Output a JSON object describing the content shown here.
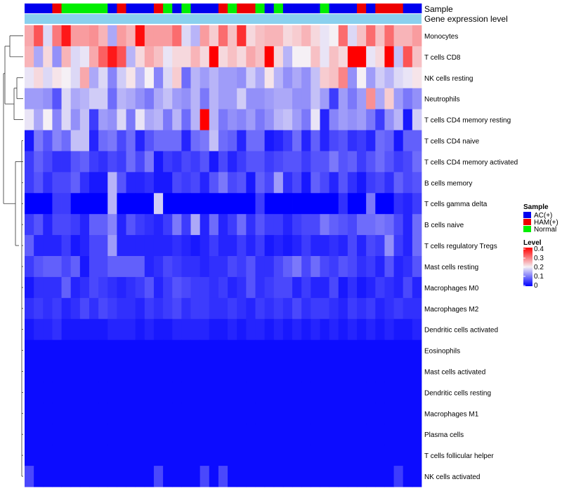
{
  "chart_data": {
    "type": "heatmap",
    "title": "",
    "annotation_tracks": {
      "sample_label": "Sample",
      "expression_label": "Gene expression level"
    },
    "sample_groups": [
      "AC(+)",
      "AC(+)",
      "AC(+)",
      "HAM(+)",
      "Normal",
      "Normal",
      "Normal",
      "Normal",
      "Normal",
      "AC(+)",
      "HAM(+)",
      "AC(+)",
      "AC(+)",
      "AC(+)",
      "HAM(+)",
      "Normal",
      "AC(+)",
      "Normal",
      "AC(+)",
      "AC(+)",
      "AC(+)",
      "HAM(+)",
      "Normal",
      "HAM(+)",
      "HAM(+)",
      "Normal",
      "AC(+)",
      "Normal",
      "AC(+)",
      "AC(+)",
      "AC(+)",
      "AC(+)",
      "Normal",
      "AC(+)",
      "AC(+)",
      "AC(+)",
      "HAM(+)",
      "AC(+)",
      "HAM(+)",
      "HAM(+)",
      "HAM(+)",
      "AC(+)",
      "AC(+)"
    ],
    "rows": [
      "Monocytes",
      "T cells CD8",
      "NK cells resting",
      "Neutrophils",
      "T cells CD4 memory resting",
      "T cells CD4 naive",
      "T cells CD4 memory activated",
      "B cells memory",
      "T cells gamma delta",
      "B cells naive",
      "T cells regulatory  Tregs",
      "Mast cells resting",
      "Macrophages M0",
      "Macrophages M2",
      "Dendritic cells activated",
      "Eosinophils",
      "Mast cells activated",
      "Dendritic cells resting",
      "Macrophages M1",
      "Plasma cells",
      "T cells follicular helper",
      "NK cells activated"
    ],
    "values": [
      [
        0.26,
        0.33,
        0.18,
        0.3,
        0.38,
        0.27,
        0.27,
        0.28,
        0.25,
        0.14,
        0.27,
        0.25,
        0.39,
        0.27,
        0.27,
        0.27,
        0.31,
        0.18,
        0.15,
        0.27,
        0.23,
        0.31,
        0.24,
        0.36,
        0.22,
        0.24,
        0.25,
        0.25,
        0.22,
        0.23,
        0.25,
        0.22,
        0.19,
        0.2,
        0.31,
        0.18,
        0.24,
        0.31,
        0.24,
        0.31,
        0.25,
        0.25,
        0.27
      ],
      [
        0.25,
        0.14,
        0.22,
        0.12,
        0.25,
        0.18,
        0.19,
        0.26,
        0.32,
        0.38,
        0.33,
        0.15,
        0.22,
        0.26,
        0.24,
        0.19,
        0.22,
        0.22,
        0.25,
        0.22,
        0.4,
        0.22,
        0.24,
        0.22,
        0.26,
        0.24,
        0.4,
        0.22,
        0.15,
        0.2,
        0.2,
        0.24,
        0.19,
        0.24,
        0.22,
        0.4,
        0.4,
        0.19,
        0.22,
        0.4,
        0.16,
        0.33,
        0.24
      ],
      [
        0.19,
        0.22,
        0.18,
        0.21,
        0.2,
        0.18,
        0.26,
        0.14,
        0.18,
        0.11,
        0.17,
        0.21,
        0.15,
        0.2,
        0.11,
        0.18,
        0.23,
        0.09,
        0.15,
        0.13,
        0.15,
        0.13,
        0.13,
        0.12,
        0.17,
        0.14,
        0.21,
        0.15,
        0.12,
        0.14,
        0.12,
        0.16,
        0.23,
        0.24,
        0.29,
        0.12,
        0.2,
        0.13,
        0.17,
        0.15,
        0.18,
        0.19,
        0.21
      ],
      [
        0.13,
        0.13,
        0.12,
        0.07,
        0.18,
        0.14,
        0.15,
        0.17,
        0.17,
        0.09,
        0.15,
        0.14,
        0.12,
        0.1,
        0.14,
        0.16,
        0.13,
        0.12,
        0.15,
        0.1,
        0.15,
        0.13,
        0.13,
        0.17,
        0.12,
        0.12,
        0.13,
        0.14,
        0.14,
        0.12,
        0.12,
        0.16,
        0.13,
        0.05,
        0.13,
        0.1,
        0.13,
        0.28,
        0.14,
        0.23,
        0.13,
        0.1,
        0.12
      ],
      [
        0.19,
        0.14,
        0.2,
        0.11,
        0.18,
        0.12,
        0.16,
        0.05,
        0.13,
        0.12,
        0.18,
        0.1,
        0.19,
        0.14,
        0.15,
        0.1,
        0.15,
        0.09,
        0.15,
        0.4,
        0.15,
        0.1,
        0.12,
        0.11,
        0.13,
        0.1,
        0.12,
        0.15,
        0.16,
        0.13,
        0.1,
        0.19,
        0.03,
        0.11,
        0.13,
        0.12,
        0.13,
        0.1,
        0.05,
        0.12,
        0.15,
        0.02,
        0.17
      ],
      [
        0.02,
        0.1,
        0.07,
        0.11,
        0.09,
        0.16,
        0.16,
        0.03,
        0.09,
        0.1,
        0.06,
        0.09,
        0.03,
        0.07,
        0.09,
        0.09,
        0.09,
        0.03,
        0.09,
        0.1,
        0.16,
        0.09,
        0.08,
        0.03,
        0.09,
        0.09,
        0.02,
        0.03,
        0.05,
        0.09,
        0.03,
        0.08,
        0.03,
        0.06,
        0.07,
        0.04,
        0.05,
        0.03,
        0.09,
        0.08,
        0.02,
        0.08,
        0.08
      ],
      [
        0.05,
        0.08,
        0.06,
        0.04,
        0.04,
        0.07,
        0.08,
        0.05,
        0.04,
        0.06,
        0.05,
        0.09,
        0.06,
        0.1,
        0.02,
        0.05,
        0.04,
        0.06,
        0.05,
        0.07,
        0.02,
        0.06,
        0.03,
        0.05,
        0.07,
        0.07,
        0.05,
        0.06,
        0.07,
        0.07,
        0.05,
        0.07,
        0.07,
        0.1,
        0.07,
        0.08,
        0.05,
        0.07,
        0.09,
        0.07,
        0.05,
        0.06,
        0.09
      ],
      [
        0.05,
        0.07,
        0.04,
        0.06,
        0.06,
        0.08,
        0.04,
        0.02,
        0.02,
        0.15,
        0.07,
        0.03,
        0.03,
        0.04,
        0.02,
        0.02,
        0.06,
        0.05,
        0.06,
        0.03,
        0.07,
        0.1,
        0.06,
        0.07,
        0.02,
        0.08,
        0.06,
        0.13,
        0.04,
        0.06,
        0.02,
        0.08,
        0.06,
        0.03,
        0.07,
        0.04,
        0.02,
        0.05,
        0.06,
        0.04,
        0.08,
        0.06,
        0.07
      ],
      [
        0.0,
        0.0,
        0.0,
        0.05,
        0.05,
        0.0,
        0.0,
        0.0,
        0.0,
        0.15,
        0.0,
        0.0,
        0.0,
        0.0,
        0.17,
        0.0,
        0.0,
        0.0,
        0.0,
        0.0,
        0.0,
        0.0,
        0.0,
        0.0,
        0.0,
        0.05,
        0.0,
        0.0,
        0.0,
        0.0,
        0.0,
        0.0,
        0.0,
        0.0,
        0.04,
        0.0,
        0.0,
        0.1,
        0.0,
        0.0,
        0.04,
        0.03,
        0.05
      ],
      [
        0.05,
        0.07,
        0.03,
        0.06,
        0.06,
        0.05,
        0.03,
        0.08,
        0.08,
        0.11,
        0.03,
        0.07,
        0.05,
        0.04,
        0.03,
        0.05,
        0.1,
        0.05,
        0.14,
        0.03,
        0.09,
        0.03,
        0.05,
        0.09,
        0.04,
        0.07,
        0.05,
        0.05,
        0.03,
        0.05,
        0.06,
        0.06,
        0.1,
        0.08,
        0.07,
        0.06,
        0.09,
        0.09,
        0.1,
        0.09,
        0.06,
        0.03,
        0.09
      ],
      [
        0.08,
        0.03,
        0.03,
        0.03,
        0.05,
        0.02,
        0.03,
        0.06,
        0.06,
        0.13,
        0.03,
        0.03,
        0.03,
        0.03,
        0.03,
        0.03,
        0.04,
        0.03,
        0.02,
        0.03,
        0.05,
        0.03,
        0.03,
        0.05,
        0.03,
        0.05,
        0.02,
        0.03,
        0.02,
        0.03,
        0.05,
        0.03,
        0.03,
        0.04,
        0.03,
        0.06,
        0.03,
        0.06,
        0.05,
        0.12,
        0.05,
        0.03,
        0.09
      ],
      [
        0.05,
        0.07,
        0.08,
        0.08,
        0.06,
        0.08,
        0.02,
        0.06,
        0.06,
        0.08,
        0.08,
        0.08,
        0.08,
        0.03,
        0.04,
        0.06,
        0.05,
        0.04,
        0.04,
        0.03,
        0.04,
        0.04,
        0.06,
        0.05,
        0.07,
        0.04,
        0.04,
        0.06,
        0.08,
        0.1,
        0.06,
        0.09,
        0.06,
        0.05,
        0.07,
        0.06,
        0.04,
        0.05,
        0.03,
        0.07,
        0.03,
        0.04,
        0.07
      ],
      [
        0.02,
        0.04,
        0.04,
        0.04,
        0.08,
        0.03,
        0.04,
        0.06,
        0.05,
        0.04,
        0.03,
        0.04,
        0.05,
        0.07,
        0.03,
        0.05,
        0.07,
        0.06,
        0.05,
        0.05,
        0.04,
        0.05,
        0.03,
        0.04,
        0.07,
        0.04,
        0.05,
        0.06,
        0.06,
        0.03,
        0.05,
        0.03,
        0.03,
        0.06,
        0.02,
        0.04,
        0.02,
        0.03,
        0.05,
        0.04,
        0.03,
        0.06,
        0.03
      ],
      [
        0.04,
        0.05,
        0.04,
        0.05,
        0.03,
        0.04,
        0.06,
        0.04,
        0.06,
        0.05,
        0.04,
        0.04,
        0.03,
        0.05,
        0.04,
        0.05,
        0.06,
        0.04,
        0.05,
        0.05,
        0.04,
        0.04,
        0.05,
        0.04,
        0.03,
        0.05,
        0.04,
        0.05,
        0.04,
        0.06,
        0.04,
        0.05,
        0.05,
        0.04,
        0.03,
        0.05,
        0.04,
        0.05,
        0.03,
        0.04,
        0.05,
        0.04,
        0.04
      ],
      [
        0.02,
        0.03,
        0.03,
        0.04,
        0.02,
        0.02,
        0.02,
        0.02,
        0.02,
        0.03,
        0.03,
        0.03,
        0.02,
        0.03,
        0.02,
        0.02,
        0.03,
        0.03,
        0.03,
        0.03,
        0.02,
        0.02,
        0.03,
        0.02,
        0.03,
        0.03,
        0.02,
        0.03,
        0.02,
        0.03,
        0.02,
        0.03,
        0.02,
        0.03,
        0.02,
        0.03,
        0.02,
        0.03,
        0.02,
        0.03,
        0.02,
        0.02,
        0.03
      ],
      [
        0.01,
        0.01,
        0.01,
        0.01,
        0.01,
        0.01,
        0.01,
        0.01,
        0.01,
        0.01,
        0.01,
        0.01,
        0.01,
        0.01,
        0.01,
        0.01,
        0.01,
        0.01,
        0.01,
        0.01,
        0.01,
        0.01,
        0.01,
        0.01,
        0.01,
        0.01,
        0.01,
        0.01,
        0.01,
        0.01,
        0.01,
        0.01,
        0.01,
        0.01,
        0.01,
        0.01,
        0.01,
        0.01,
        0.01,
        0.01,
        0.01,
        0.01,
        0.01
      ],
      [
        0.01,
        0.01,
        0.01,
        0.01,
        0.01,
        0.01,
        0.01,
        0.01,
        0.01,
        0.01,
        0.01,
        0.01,
        0.01,
        0.01,
        0.01,
        0.01,
        0.01,
        0.01,
        0.01,
        0.01,
        0.01,
        0.01,
        0.01,
        0.01,
        0.01,
        0.01,
        0.01,
        0.01,
        0.01,
        0.01,
        0.01,
        0.01,
        0.01,
        0.01,
        0.01,
        0.01,
        0.01,
        0.01,
        0.01,
        0.01,
        0.01,
        0.01,
        0.01
      ],
      [
        0.01,
        0.01,
        0.01,
        0.01,
        0.01,
        0.01,
        0.01,
        0.01,
        0.01,
        0.01,
        0.01,
        0.01,
        0.01,
        0.01,
        0.01,
        0.01,
        0.01,
        0.01,
        0.01,
        0.01,
        0.01,
        0.01,
        0.01,
        0.01,
        0.01,
        0.01,
        0.01,
        0.01,
        0.01,
        0.01,
        0.01,
        0.01,
        0.01,
        0.01,
        0.01,
        0.01,
        0.01,
        0.01,
        0.01,
        0.01,
        0.01,
        0.01,
        0.01
      ],
      [
        0.01,
        0.01,
        0.01,
        0.01,
        0.01,
        0.01,
        0.01,
        0.01,
        0.01,
        0.01,
        0.01,
        0.01,
        0.01,
        0.01,
        0.01,
        0.01,
        0.01,
        0.01,
        0.01,
        0.01,
        0.01,
        0.01,
        0.01,
        0.01,
        0.01,
        0.01,
        0.01,
        0.01,
        0.01,
        0.01,
        0.01,
        0.01,
        0.01,
        0.01,
        0.01,
        0.01,
        0.01,
        0.01,
        0.01,
        0.01,
        0.01,
        0.01,
        0.01
      ],
      [
        0.01,
        0.01,
        0.01,
        0.01,
        0.01,
        0.01,
        0.01,
        0.01,
        0.01,
        0.01,
        0.01,
        0.01,
        0.01,
        0.01,
        0.01,
        0.01,
        0.01,
        0.01,
        0.01,
        0.01,
        0.01,
        0.01,
        0.01,
        0.01,
        0.01,
        0.01,
        0.01,
        0.01,
        0.01,
        0.01,
        0.01,
        0.01,
        0.01,
        0.01,
        0.01,
        0.01,
        0.01,
        0.01,
        0.01,
        0.01,
        0.01,
        0.01,
        0.01
      ],
      [
        0.01,
        0.01,
        0.01,
        0.01,
        0.01,
        0.01,
        0.01,
        0.01,
        0.01,
        0.01,
        0.01,
        0.01,
        0.01,
        0.01,
        0.01,
        0.01,
        0.01,
        0.01,
        0.01,
        0.01,
        0.01,
        0.01,
        0.01,
        0.01,
        0.01,
        0.01,
        0.01,
        0.01,
        0.01,
        0.01,
        0.01,
        0.01,
        0.01,
        0.01,
        0.01,
        0.01,
        0.01,
        0.01,
        0.01,
        0.01,
        0.01,
        0.01,
        0.01
      ],
      [
        0.06,
        0.01,
        0.01,
        0.01,
        0.01,
        0.01,
        0.01,
        0.01,
        0.01,
        0.01,
        0.01,
        0.01,
        0.01,
        0.01,
        0.06,
        0.01,
        0.01,
        0.01,
        0.01,
        0.06,
        0.01,
        0.06,
        0.01,
        0.01,
        0.01,
        0.01,
        0.01,
        0.01,
        0.01,
        0.01,
        0.01,
        0.01,
        0.01,
        0.01,
        0.01,
        0.01,
        0.01,
        0.01,
        0.01,
        0.01,
        0.05,
        0.01,
        0.01
      ]
    ],
    "legend": {
      "sample_title": "Sample",
      "groups": [
        {
          "name": "AC(+)",
          "color": "#0000ee"
        },
        {
          "name": "HAM(+)",
          "color": "#ee0000"
        },
        {
          "name": "Normal",
          "color": "#00ee00"
        }
      ],
      "level_title": "Level",
      "level_ticks": [
        "0.4",
        "0.3",
        "0.2",
        "0.1",
        "0"
      ],
      "range": [
        0,
        0.4
      ]
    },
    "colors": {
      "low": "#0000ff",
      "mid": "#f5f0f5",
      "high": "#ff0000",
      "expression_track": "#8ad0ee"
    }
  }
}
